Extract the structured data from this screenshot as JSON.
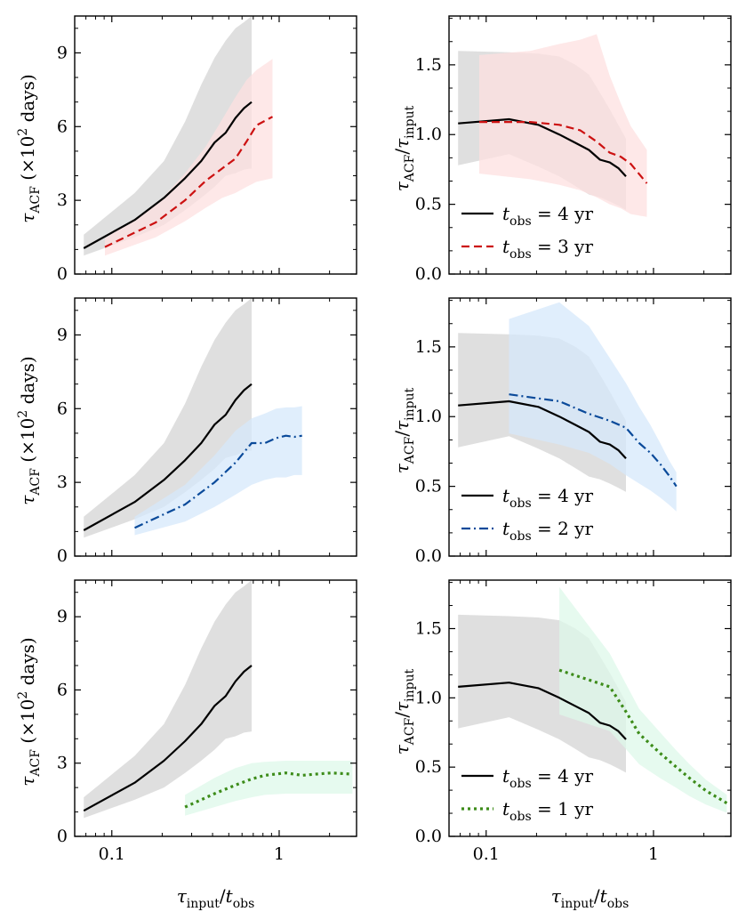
{
  "chart_data": [
    {
      "type": "line",
      "row": 0,
      "col": 0,
      "xscale": "log",
      "xlim": [
        0.06,
        2.9
      ],
      "ylim": [
        0,
        10.5
      ],
      "yticks": [
        0,
        3,
        6,
        9
      ],
      "ytick_labels": [
        "0",
        "3",
        "6",
        "9"
      ],
      "ylabel": "τACF (×10² days)",
      "series": [
        {
          "name": "t_obs = 4 yr",
          "color": "#000000",
          "dash": "solid",
          "x": [
            0.068,
            0.137,
            0.205,
            0.274,
            0.342,
            0.411,
            0.479,
            0.548,
            0.616,
            0.685
          ],
          "y": [
            1.05,
            2.2,
            3.1,
            3.9,
            4.6,
            5.35,
            5.75,
            6.35,
            6.75,
            7.0
          ],
          "lower": [
            0.75,
            1.5,
            2.0,
            2.6,
            3.1,
            3.55,
            4.0,
            4.1,
            4.25,
            4.3
          ],
          "upper": [
            1.6,
            3.3,
            4.6,
            6.2,
            7.7,
            8.8,
            9.5,
            10.0,
            10.25,
            10.5
          ],
          "fill": "#d9d9d9"
        },
        {
          "name": "t_obs = 3 yr",
          "color": "#cc1111",
          "dash": "dashed",
          "x": [
            0.091,
            0.183,
            0.274,
            0.365,
            0.457,
            0.548,
            0.639,
            0.731,
            0.913
          ],
          "y": [
            1.1,
            2.1,
            3.0,
            3.8,
            4.3,
            4.7,
            5.4,
            6.05,
            6.4
          ],
          "lower": [
            0.75,
            1.5,
            2.15,
            2.7,
            3.1,
            3.3,
            3.55,
            3.75,
            3.9
          ],
          "upper": [
            1.45,
            2.8,
            4.1,
            5.2,
            6.3,
            7.2,
            7.9,
            8.3,
            8.75
          ],
          "fill": "#fde0e0"
        }
      ]
    },
    {
      "type": "line",
      "row": 0,
      "col": 1,
      "xscale": "log",
      "xlim": [
        0.06,
        2.9
      ],
      "ylim": [
        0,
        1.85
      ],
      "yticks": [
        0,
        0.5,
        1.0,
        1.5
      ],
      "ytick_labels": [
        "0.0",
        "0.5",
        "1.0",
        "1.5"
      ],
      "ylabel": "τACF/τinput",
      "legend": [
        "t_obs = 4 yr",
        "t_obs = 3 yr"
      ],
      "series": [
        {
          "name": "t_obs = 4 yr",
          "color": "#000000",
          "dash": "solid",
          "x": [
            0.068,
            0.137,
            0.205,
            0.274,
            0.342,
            0.411,
            0.479,
            0.548,
            0.616,
            0.685
          ],
          "y": [
            1.08,
            1.11,
            1.07,
            1.0,
            0.94,
            0.89,
            0.82,
            0.8,
            0.76,
            0.7
          ],
          "lower": [
            0.78,
            0.86,
            0.77,
            0.7,
            0.63,
            0.57,
            0.55,
            0.52,
            0.49,
            0.46
          ],
          "upper": [
            1.6,
            1.59,
            1.58,
            1.56,
            1.5,
            1.43,
            1.3,
            1.18,
            1.07,
            0.97
          ],
          "fill": "#d9d9d9"
        },
        {
          "name": "t_obs = 3 yr",
          "color": "#cc1111",
          "dash": "dashed",
          "x": [
            0.091,
            0.183,
            0.274,
            0.365,
            0.457,
            0.548,
            0.639,
            0.731,
            0.913
          ],
          "y": [
            1.09,
            1.09,
            1.07,
            1.03,
            0.95,
            0.87,
            0.84,
            0.79,
            0.65
          ],
          "lower": [
            0.72,
            0.68,
            0.64,
            0.6,
            0.55,
            0.5,
            0.47,
            0.43,
            0.41
          ],
          "upper": [
            1.57,
            1.6,
            1.65,
            1.68,
            1.72,
            1.42,
            1.22,
            1.06,
            0.89
          ],
          "fill": "#fde0e0"
        }
      ]
    },
    {
      "type": "line",
      "row": 1,
      "col": 0,
      "xscale": "log",
      "xlim": [
        0.06,
        2.9
      ],
      "ylim": [
        0,
        10.5
      ],
      "yticks": [
        0,
        3,
        6,
        9
      ],
      "ytick_labels": [
        "0",
        "3",
        "6",
        "9"
      ],
      "ylabel": "τACF (×10² days)",
      "series": [
        {
          "name": "t_obs = 4 yr",
          "color": "#000000",
          "dash": "solid",
          "x": [
            0.068,
            0.137,
            0.205,
            0.274,
            0.342,
            0.411,
            0.479,
            0.548,
            0.616,
            0.685
          ],
          "y": [
            1.05,
            2.2,
            3.1,
            3.9,
            4.6,
            5.35,
            5.75,
            6.35,
            6.75,
            7.0
          ],
          "lower": [
            0.75,
            1.5,
            2.0,
            2.6,
            3.1,
            3.55,
            4.0,
            4.1,
            4.25,
            4.3
          ],
          "upper": [
            1.6,
            3.3,
            4.6,
            6.2,
            7.7,
            8.8,
            9.5,
            10.0,
            10.25,
            10.5
          ],
          "fill": "#d9d9d9"
        },
        {
          "name": "t_obs = 2 yr",
          "color": "#0a4a9a",
          "dash": "dashdot",
          "x": [
            0.137,
            0.274,
            0.411,
            0.548,
            0.685,
            0.822,
            0.959,
            1.096,
            1.233,
            1.37
          ],
          "y": [
            1.15,
            2.1,
            3.0,
            3.8,
            4.6,
            4.6,
            4.8,
            4.9,
            4.85,
            4.9
          ],
          "lower": [
            0.85,
            1.4,
            2.0,
            2.5,
            2.9,
            3.1,
            3.2,
            3.2,
            3.3,
            3.3
          ],
          "upper": [
            1.6,
            2.9,
            4.1,
            5.1,
            5.6,
            5.8,
            6.0,
            6.05,
            6.05,
            6.1
          ],
          "fill": "#d6e8fb"
        }
      ]
    },
    {
      "type": "line",
      "row": 1,
      "col": 1,
      "xscale": "log",
      "xlim": [
        0.06,
        2.9
      ],
      "ylim": [
        0,
        1.85
      ],
      "yticks": [
        0,
        0.5,
        1.0,
        1.5
      ],
      "ytick_labels": [
        "0.0",
        "0.5",
        "1.0",
        "1.5"
      ],
      "ylabel": "τACF/τinput",
      "legend": [
        "t_obs = 4 yr",
        "t_obs = 2 yr"
      ],
      "series": [
        {
          "name": "t_obs = 4 yr",
          "color": "#000000",
          "dash": "solid",
          "x": [
            0.068,
            0.137,
            0.205,
            0.274,
            0.342,
            0.411,
            0.479,
            0.548,
            0.616,
            0.685
          ],
          "y": [
            1.08,
            1.11,
            1.07,
            1.0,
            0.94,
            0.89,
            0.82,
            0.8,
            0.76,
            0.7
          ],
          "lower": [
            0.78,
            0.86,
            0.77,
            0.7,
            0.63,
            0.57,
            0.55,
            0.52,
            0.49,
            0.46
          ],
          "upper": [
            1.6,
            1.59,
            1.58,
            1.56,
            1.5,
            1.43,
            1.3,
            1.18,
            1.07,
            0.97
          ],
          "fill": "#d9d9d9"
        },
        {
          "name": "t_obs = 2 yr",
          "color": "#0a4a9a",
          "dash": "dashdot",
          "x": [
            0.137,
            0.274,
            0.411,
            0.548,
            0.685,
            0.822,
            0.959,
            1.096,
            1.233,
            1.37
          ],
          "y": [
            1.16,
            1.11,
            1.02,
            0.97,
            0.92,
            0.81,
            0.74,
            0.66,
            0.58,
            0.5
          ],
          "lower": [
            0.88,
            0.8,
            0.74,
            0.66,
            0.58,
            0.52,
            0.47,
            0.42,
            0.37,
            0.32
          ],
          "upper": [
            1.7,
            1.82,
            1.65,
            1.42,
            1.24,
            1.07,
            0.94,
            0.81,
            0.69,
            0.6
          ],
          "fill": "#d6e8fb"
        }
      ]
    },
    {
      "type": "line",
      "row": 2,
      "col": 0,
      "xscale": "log",
      "xlim": [
        0.06,
        2.9
      ],
      "ylim": [
        0,
        10.5
      ],
      "yticks": [
        0,
        3,
        6,
        9
      ],
      "ytick_labels": [
        "0",
        "3",
        "6",
        "9"
      ],
      "xticks": [
        0.1,
        1
      ],
      "xtick_labels": [
        "0.1",
        "1"
      ],
      "ylabel": "τACF (×10² days)",
      "xlabel": "τinput/tobs",
      "series": [
        {
          "name": "t_obs = 4 yr",
          "color": "#000000",
          "dash": "solid",
          "x": [
            0.068,
            0.137,
            0.205,
            0.274,
            0.342,
            0.411,
            0.479,
            0.548,
            0.616,
            0.685
          ],
          "y": [
            1.05,
            2.2,
            3.1,
            3.9,
            4.6,
            5.35,
            5.75,
            6.35,
            6.75,
            7.0
          ],
          "lower": [
            0.75,
            1.5,
            2.0,
            2.6,
            3.1,
            3.55,
            4.0,
            4.1,
            4.25,
            4.3
          ],
          "upper": [
            1.6,
            3.3,
            4.6,
            6.2,
            7.7,
            8.8,
            9.5,
            10.0,
            10.25,
            10.5
          ],
          "fill": "#d9d9d9"
        },
        {
          "name": "t_obs = 1 yr",
          "color": "#3d8c1a",
          "dash": "dotted",
          "x": [
            0.274,
            0.411,
            0.548,
            0.685,
            0.822,
            1.096,
            1.37,
            1.644,
            2.055,
            2.74
          ],
          "y": [
            1.2,
            1.75,
            2.1,
            2.35,
            2.5,
            2.6,
            2.5,
            2.55,
            2.6,
            2.55
          ],
          "lower": [
            0.85,
            1.2,
            1.45,
            1.6,
            1.7,
            1.75,
            1.75,
            1.75,
            1.75,
            1.75
          ],
          "upper": [
            1.7,
            2.4,
            2.8,
            3.0,
            3.05,
            3.1,
            3.1,
            3.1,
            3.1,
            3.1
          ],
          "fill": "#def8ea"
        }
      ]
    },
    {
      "type": "line",
      "row": 2,
      "col": 1,
      "xscale": "log",
      "xlim": [
        0.06,
        2.9
      ],
      "ylim": [
        0,
        1.85
      ],
      "yticks": [
        0,
        0.5,
        1.0,
        1.5
      ],
      "ytick_labels": [
        "0.0",
        "0.5",
        "1.0",
        "1.5"
      ],
      "xticks": [
        0.1,
        1
      ],
      "xtick_labels": [
        "0.1",
        "1"
      ],
      "ylabel": "τACF/τinput",
      "xlabel": "τinput/tobs",
      "legend": [
        "t_obs = 4 yr",
        "t_obs = 1 yr"
      ],
      "series": [
        {
          "name": "t_obs = 4 yr",
          "color": "#000000",
          "dash": "solid",
          "x": [
            0.068,
            0.137,
            0.205,
            0.274,
            0.342,
            0.411,
            0.479,
            0.548,
            0.616,
            0.685
          ],
          "y": [
            1.08,
            1.11,
            1.07,
            1.0,
            0.94,
            0.89,
            0.82,
            0.8,
            0.76,
            0.7
          ],
          "lower": [
            0.78,
            0.86,
            0.77,
            0.7,
            0.63,
            0.57,
            0.55,
            0.52,
            0.49,
            0.46
          ],
          "upper": [
            1.6,
            1.59,
            1.58,
            1.56,
            1.5,
            1.43,
            1.3,
            1.18,
            1.07,
            0.97
          ],
          "fill": "#d9d9d9"
        },
        {
          "name": "t_obs = 1 yr",
          "color": "#3d8c1a",
          "dash": "dotted",
          "x": [
            0.274,
            0.548,
            0.685,
            0.822,
            1.096,
            1.37,
            1.644,
            2.055,
            2.74
          ],
          "y": [
            1.2,
            1.08,
            0.9,
            0.74,
            0.6,
            0.5,
            0.42,
            0.33,
            0.24
          ],
          "lower": [
            0.88,
            0.76,
            0.63,
            0.52,
            0.42,
            0.35,
            0.29,
            0.23,
            0.17
          ],
          "upper": [
            1.8,
            1.32,
            1.1,
            0.92,
            0.75,
            0.62,
            0.52,
            0.41,
            0.3
          ],
          "fill": "#def8ea"
        }
      ]
    }
  ]
}
